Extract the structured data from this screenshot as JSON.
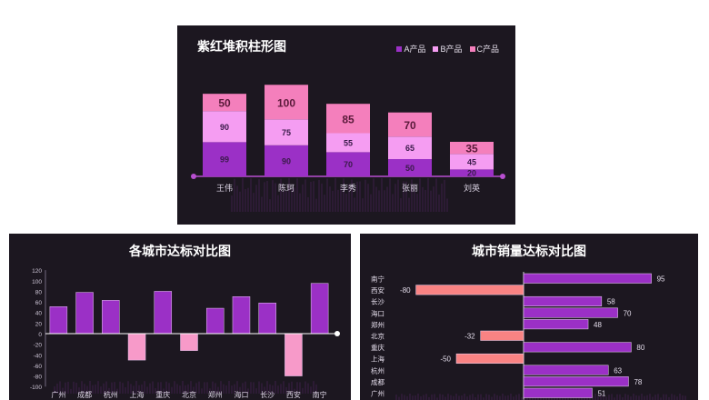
{
  "chart_data": [
    {
      "type": "bar",
      "stacked": true,
      "title": "紫红堆积柱形图",
      "categories": [
        "王伟",
        "陈珂",
        "李秀",
        "张丽",
        "刘英"
      ],
      "series": [
        {
          "name": "A产品",
          "values": [
            99,
            90,
            70,
            50,
            20
          ],
          "color": "#9b30c6"
        },
        {
          "name": "B产品",
          "values": [
            90,
            75,
            55,
            65,
            45
          ],
          "color": "#f59df2"
        },
        {
          "name": "C产品",
          "values": [
            50,
            100,
            85,
            70,
            35
          ],
          "color": "#f47fbc"
        }
      ],
      "legend": "top-right",
      "axis_line_color": "#b84fd0"
    },
    {
      "type": "bar",
      "title": "各城市达标对比图",
      "categories": [
        "广州",
        "成都",
        "杭州",
        "上海",
        "重庆",
        "北京",
        "郑州",
        "海口",
        "长沙",
        "西安",
        "南宁"
      ],
      "values": [
        51,
        78,
        63,
        -50,
        80,
        -32,
        48,
        70,
        58,
        -80,
        95
      ],
      "ylim": [
        -100,
        120
      ],
      "yticks": [
        "120",
        "100",
        "80",
        "60",
        "40",
        "20",
        "0",
        "-20",
        "-40",
        "-60",
        "-80",
        "-100"
      ],
      "positive_color": "#9b30c6",
      "negative_color": "#f79ac9"
    },
    {
      "type": "bar",
      "orientation": "horizontal",
      "title": "城市销量达标对比图",
      "categories": [
        "南宁",
        "西安",
        "长沙",
        "海口",
        "郑州",
        "北京",
        "重庆",
        "上海",
        "杭州",
        "成都",
        "广州"
      ],
      "values": [
        95,
        -80,
        58,
        70,
        48,
        -32,
        80,
        -50,
        63,
        78,
        51
      ],
      "positive_color": "#9b30c6",
      "negative_color": "#f98383"
    }
  ]
}
